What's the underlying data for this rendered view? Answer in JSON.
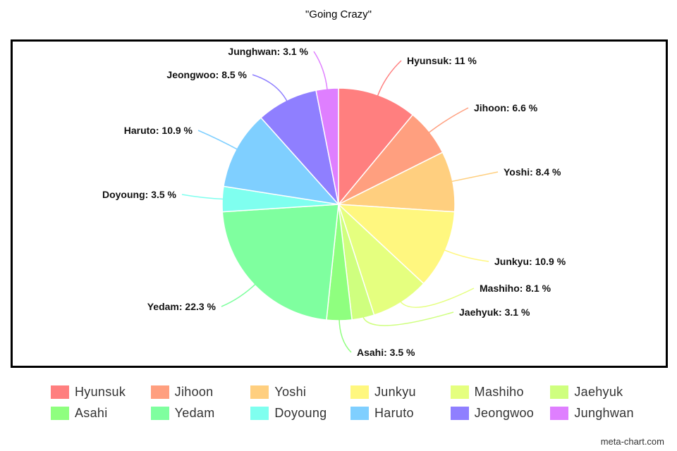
{
  "title": "\"Going Crazy\"",
  "credit": "meta-chart.com",
  "chart_data": {
    "type": "pie",
    "title": "\"Going Crazy\"",
    "legend": "bottom",
    "slices": [
      {
        "label": "Hyunsuk",
        "value": 11,
        "text": "Hyunsuk: 11 %",
        "color": "#ff7f7f"
      },
      {
        "label": "Jihoon",
        "value": 6.6,
        "text": "Jihoon: 6.6 %",
        "color": "#ff9f7f"
      },
      {
        "label": "Yoshi",
        "value": 8.4,
        "text": "Yoshi: 8.4 %",
        "color": "#ffcf7f"
      },
      {
        "label": "Junkyu",
        "value": 10.9,
        "text": "Junkyu: 10.9 %",
        "color": "#fff77f"
      },
      {
        "label": "Mashiho",
        "value": 8.1,
        "text": "Mashiho: 8.1 %",
        "color": "#e5ff7f"
      },
      {
        "label": "Jaehyuk",
        "value": 3.1,
        "text": "Jaehyuk: 3.1 %",
        "color": "#cfff7f"
      },
      {
        "label": "Asahi",
        "value": 3.5,
        "text": "Asahi: 3.5 %",
        "color": "#8fff7f"
      },
      {
        "label": "Yedam",
        "value": 22.3,
        "text": "Yedam: 22.3 %",
        "color": "#7fff9f"
      },
      {
        "label": "Doyoung",
        "value": 3.5,
        "text": "Doyoung: 3.5 %",
        "color": "#7fffef"
      },
      {
        "label": "Haruto",
        "value": 10.9,
        "text": "Haruto: 10.9 %",
        "color": "#7fcfff"
      },
      {
        "label": "Jeongwoo",
        "value": 8.5,
        "text": "Jeongwoo: 8.5 %",
        "color": "#8f7fff"
      },
      {
        "label": "Junghwan",
        "value": 3.1,
        "text": "Junghwan: 3.1 %",
        "color": "#df7fff"
      }
    ]
  }
}
